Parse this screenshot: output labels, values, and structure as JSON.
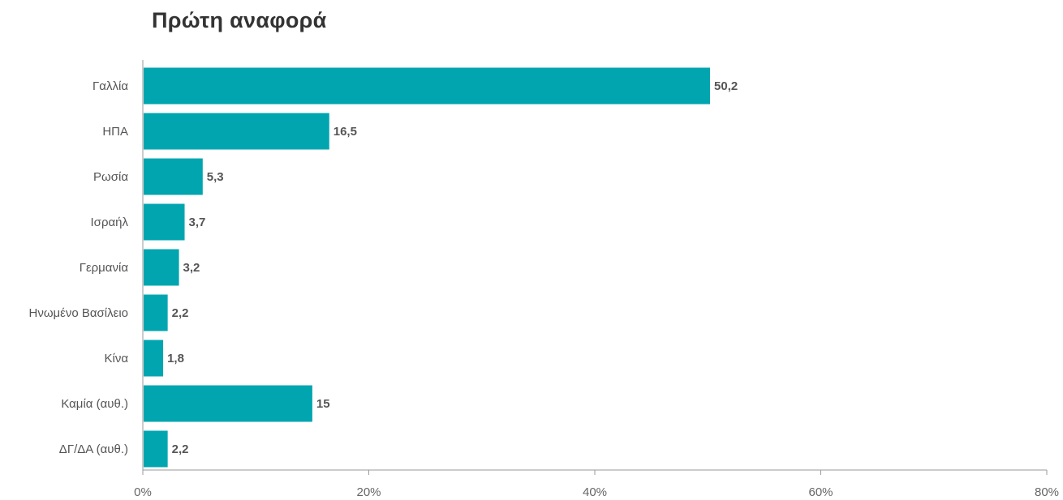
{
  "chart_data": {
    "type": "bar",
    "orientation": "horizontal",
    "title": "Πρώτη αναφορά",
    "categories": [
      "Γαλλία",
      "ΗΠΑ",
      "Ρωσία",
      "Ισραήλ",
      "Γερμανία",
      "Ηνωμένο Βασίλειο",
      "Κίνα",
      "Καμία (αυθ.)",
      "ΔΓ/ΔΑ (αυθ.)"
    ],
    "values": [
      50.2,
      16.5,
      5.3,
      3.7,
      3.2,
      2.2,
      1.8,
      15,
      2.2
    ],
    "value_labels": [
      "50,2",
      "16,5",
      "5,3",
      "3,7",
      "3,2",
      "2,2",
      "1,8",
      "15",
      "2,2"
    ],
    "xlim": [
      0,
      80
    ],
    "xticks": [
      0,
      20,
      40,
      60,
      80
    ],
    "xtick_labels": [
      "0%",
      "20%",
      "40%",
      "60%",
      "80%"
    ],
    "xlabel": "",
    "ylabel": "",
    "bar_color": "#00a5b0",
    "grid": false
  }
}
